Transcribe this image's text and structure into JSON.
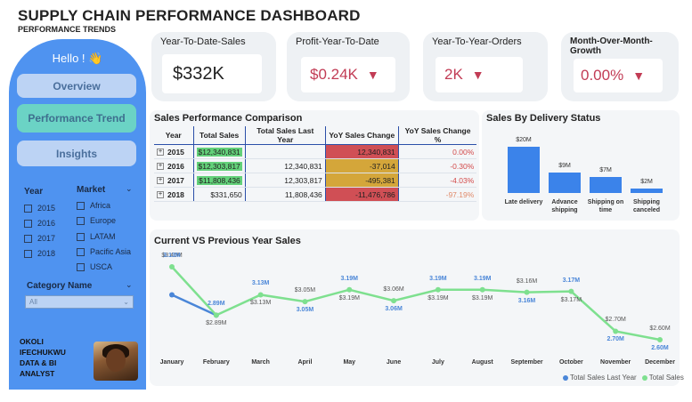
{
  "header": {
    "title": "SUPPLY CHAIN PERFORMANCE DASHBOARD",
    "subtitle": "PERFORMANCE TRENDS"
  },
  "sidebar": {
    "greeting": "Hello ! 👋",
    "nav": [
      {
        "label": "Overview"
      },
      {
        "label": "Performance Trend"
      },
      {
        "label": "Insights"
      }
    ],
    "year_filter": {
      "label": "Year",
      "options": [
        "2015",
        "2016",
        "2017",
        "2018"
      ]
    },
    "market_filter": {
      "label": "Market",
      "options": [
        "Africa",
        "Europe",
        "LATAM",
        "Pacific Asia",
        "USCA"
      ]
    },
    "category_filter": {
      "label": "Category Name",
      "value": "All"
    },
    "author": {
      "line1": "OKOLI",
      "line2": "IFECHUKWU",
      "line3": "DATA & BI",
      "line4": "ANALYST"
    }
  },
  "kpis": [
    {
      "title": "Year-To-Date-Sales",
      "value": "$332K"
    },
    {
      "title": "Profit-Year-To-Date",
      "value": "$0.24K"
    },
    {
      "title": "Year-To-Year-Orders",
      "value": "2K"
    },
    {
      "title": "Month-Over-Month-Growth",
      "value": "0.00%"
    }
  ],
  "sales_table": {
    "title": "Sales Performance Comparison",
    "headers": [
      "Year",
      "Total Sales",
      "Total Sales Last Year",
      "YoY Sales Change",
      "YoY Sales Change %"
    ],
    "rows": [
      {
        "year": "2015",
        "total": "$12,340,831",
        "last": "",
        "change": "12,340,831",
        "pct": "0.00%"
      },
      {
        "year": "2016",
        "total": "$12,303,817",
        "last": "12,340,831",
        "change": "-37,014",
        "pct": "-0.30%"
      },
      {
        "year": "2017",
        "total": "$11,808,436",
        "last": "12,303,817",
        "change": "-495,381",
        "pct": "-4.03%"
      },
      {
        "year": "2018",
        "total": "$331,650",
        "last": "11,808,436",
        "change": "-11,476,786",
        "pct": "-97.19%"
      }
    ]
  },
  "chart_data": [
    {
      "type": "bar",
      "title": "Sales By Delivery Status",
      "categories": [
        "Late delivery",
        "Advance shipping",
        "Shipping on time",
        "Shipping canceled"
      ],
      "values": [
        20,
        9,
        7,
        2
      ],
      "labels": [
        "$20M",
        "$9M",
        "$7M",
        "$2M"
      ],
      "unit": "$M"
    },
    {
      "type": "line",
      "title": "Current VS Previous Year Sales",
      "categories": [
        "January",
        "February",
        "March",
        "April",
        "May",
        "June",
        "July",
        "August",
        "September",
        "October",
        "November",
        "December"
      ],
      "series": [
        {
          "name": "Total Sales Last Year",
          "color": "#4a86d8",
          "values": [
            3.13,
            2.89,
            null,
            null,
            null,
            null,
            null,
            null,
            null,
            null,
            null,
            null
          ],
          "labels": [
            "3.13M",
            "2.89M",
            "3.13M",
            "3.05M",
            "3.19M",
            "3.06M",
            "3.19M",
            "3.19M",
            "3.16M",
            "3.17M",
            "2.70M",
            "2.60M"
          ]
        },
        {
          "name": "Total Sales",
          "color": "#7ee08f",
          "values": [
            3.46,
            2.89,
            3.13,
            3.05,
            3.19,
            3.06,
            3.19,
            3.19,
            3.16,
            3.17,
            2.7,
            2.6
          ],
          "labels": [
            "$3.46M",
            "$2.89M",
            "$3.13M",
            "$3.05M",
            "$3.19M",
            "$3.06M",
            "$3.19M",
            "$3.19M",
            "$3.16M",
            "$3.17M",
            "$2.70M",
            "$2.60M"
          ]
        }
      ],
      "ylim": [
        2.4,
        3.6
      ]
    }
  ],
  "colors": {
    "sidebar": "#4f93f0",
    "accent_red": "#c23c55",
    "line_current": "#7ee08f",
    "line_previous": "#4a86d8"
  }
}
